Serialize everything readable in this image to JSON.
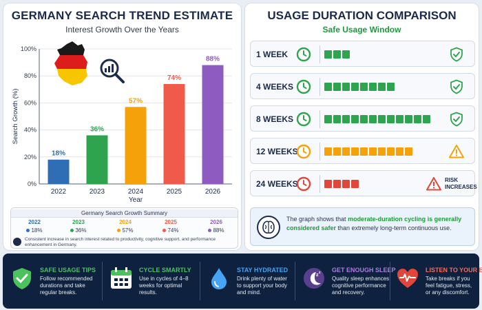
{
  "left": {
    "title": "GERMANY SEARCH TREND ESTIMATE",
    "subtitle": "Interest Growth Over the Years"
  },
  "chart_data": {
    "type": "bar",
    "categories": [
      "2022",
      "2023",
      "2024",
      "2025",
      "2026"
    ],
    "values": [
      18,
      36,
      57,
      74,
      88
    ],
    "data_labels": [
      "18%",
      "36%",
      "57%",
      "74%",
      "88%"
    ],
    "colors": [
      "#2f6db5",
      "#2fa44f",
      "#f5a10a",
      "#f05a4a",
      "#8e5bc0"
    ],
    "xlabel": "Year",
    "ylabel": "Search Growth (%)",
    "ylim": [
      0,
      100
    ],
    "yticks": [
      "0%",
      "20%",
      "40%",
      "60%",
      "80%",
      "100%"
    ],
    "grid": true
  },
  "summary": {
    "title": "Germany Search Growth Summary",
    "items": [
      {
        "year": "2022",
        "value": "18%",
        "color": "#2f6db5"
      },
      {
        "year": "2023",
        "value": "36%",
        "color": "#2fa44f"
      },
      {
        "year": "2024",
        "value": "57%",
        "color": "#f5a10a"
      },
      {
        "year": "2025",
        "value": "74%",
        "color": "#f05a4a"
      },
      {
        "year": "2026",
        "value": "88%",
        "color": "#8e5bc0"
      }
    ],
    "note": "Consistent increase in search interest related to productivity, cognitive support, and performance enhancement in Germany."
  },
  "right": {
    "title": "USAGE DURATION COMPARISON",
    "subtitle": "Safe Usage Window",
    "rows": [
      {
        "label": "1 WEEK",
        "segments": 3,
        "color": "#2fa44f",
        "status": "safe"
      },
      {
        "label": "4 WEEKS",
        "segments": 8,
        "color": "#2fa44f",
        "status": "safe"
      },
      {
        "label": "8 WEEKS",
        "segments": 12,
        "color": "#2fa44f",
        "status": "safe"
      },
      {
        "label": "12 WEEKS",
        "segments": 10,
        "color": "#f5a10a",
        "status": "warning"
      },
      {
        "label": "24 WEEKS",
        "segments": 4,
        "color": "#e2453a",
        "status": "risk",
        "risk_line1": "RISK",
        "risk_line2": "INCREASES"
      }
    ],
    "info_pre": "The graph shows that ",
    "info_highlight": "moderate-duration cycling is generally considered safer",
    "info_post": " than extremely long-term continuous use."
  },
  "footer": {
    "tips": [
      {
        "title": "SAFE USAGE TIPS",
        "text": "Follow recommended durations and take regular breaks.",
        "color": "#4cc25f",
        "icon": "shield-check-icon"
      },
      {
        "title": "CYCLE SMARTLY",
        "text": "Use in cycles of 4–8 weeks for optimal results.",
        "color": "#4cc25f",
        "icon": "calendar-icon"
      },
      {
        "title": "STAY HYDRATED",
        "text": "Drink plenty of water to support your body and mind.",
        "color": "#47a3f3",
        "icon": "water-drop-icon"
      },
      {
        "title": "GET ENOUGH SLEEP",
        "text": "Quality sleep enhances cognitive performance and recovery.",
        "color": "#b07be0",
        "icon": "moon-sleep-icon"
      },
      {
        "title": "LISTEN TO YOUR BODY",
        "text": "Take breaks if you feel fatigue, stress, or any discomfort.",
        "color": "#f46a5a",
        "icon": "heart-pulse-icon"
      }
    ]
  }
}
